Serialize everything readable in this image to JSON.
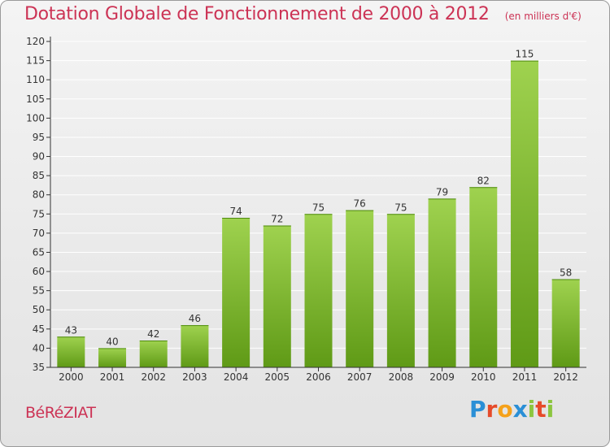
{
  "header": {
    "title": "Dotation Globale de Fonctionnement de 2000 à 2012",
    "unit_note": "(en milliers d'€)"
  },
  "commune_name": "BéRéZIAT",
  "logo": {
    "text": "Proxiti",
    "letter_colors": [
      "#2a8fd6",
      "#e64b2a",
      "#f5a11a",
      "#2a8fd6",
      "#8cc63f",
      "#e64b2a",
      "#8cc63f"
    ]
  },
  "colors": {
    "title": "#cc3355",
    "bar_top": "#9fd24f",
    "bar_bottom": "#5f9a16",
    "grid": "#ffffff",
    "axis": "#333333"
  },
  "chart_data": {
    "type": "bar",
    "title": "Dotation Globale de Fonctionnement de 2000 à 2012",
    "subtitle": "(en milliers d'€)",
    "categories": [
      "2000",
      "2001",
      "2002",
      "2003",
      "2004",
      "2005",
      "2006",
      "2007",
      "2008",
      "2009",
      "2010",
      "2011",
      "2012"
    ],
    "values": [
      43,
      40,
      42,
      46,
      74,
      72,
      75,
      76,
      75,
      79,
      82,
      115,
      58
    ],
    "ylim": [
      35,
      120
    ],
    "yticks": [
      35,
      40,
      45,
      50,
      55,
      60,
      65,
      70,
      75,
      80,
      85,
      90,
      95,
      100,
      105,
      110,
      115,
      120
    ],
    "grid": true,
    "data_labels": true
  }
}
